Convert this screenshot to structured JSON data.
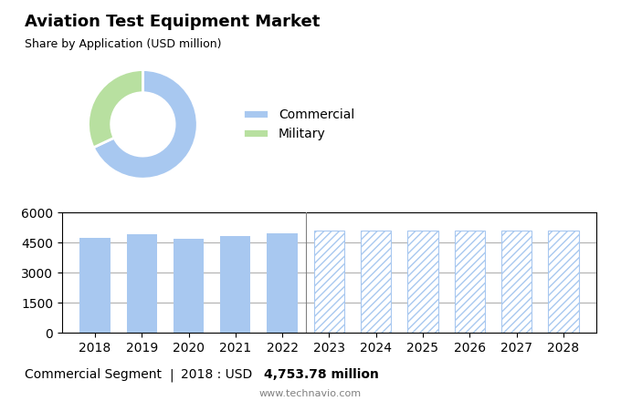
{
  "chart_data": [
    {
      "type": "donut",
      "title": "Aviation Test Equipment Market",
      "subtitle": "Share by Application (USD million)",
      "categories": [
        "Commercial",
        "Military"
      ],
      "values": [
        68,
        32
      ],
      "colors": [
        "#a8c8f0",
        "#b8e0a0"
      ],
      "legend": "center left"
    },
    {
      "type": "bar",
      "categories": [
        "2018",
        "2019",
        "2020",
        "2021",
        "2022",
        "2023",
        "2024",
        "2025",
        "2026",
        "2027",
        "2028"
      ],
      "series": [
        {
          "color": "#a8c8f0",
          "values": [
            4753.78,
            4900,
            4700,
            4820,
            4980,
            null,
            null,
            null,
            null,
            null,
            null
          ]
        },
        {
          "color": "#a8c8f0",
          "values": [
            null,
            null,
            null,
            null,
            null,
            5079.6,
            5079.6,
            5079.6,
            5079.6,
            5079.6,
            5079.6
          ]
        }
      ],
      "ylim": [
        0,
        6000
      ],
      "yticks": [
        0,
        1500,
        3000,
        4500,
        6000
      ],
      "grid": true,
      "annotations": [
        "Commercial Segment",
        "|",
        "2018 : USD ",
        "4,753.78 million",
        "www.technavio.com"
      ]
    }
  ]
}
